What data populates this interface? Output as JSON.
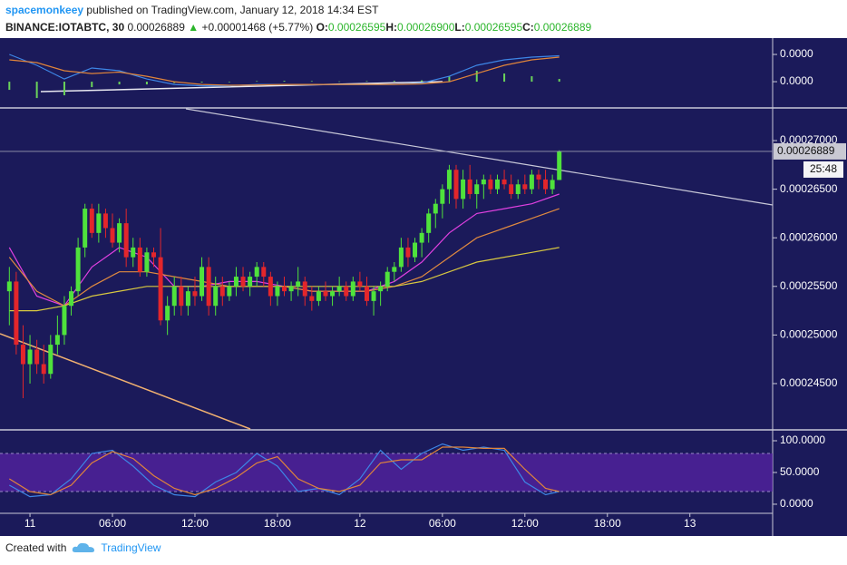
{
  "header": {
    "author": "spacemonkeey",
    "published": "published on TradingView.com, January 12, 2018 14:34 EST",
    "symbol": "BINANCE:IOTABTC, 30",
    "last": "0.00026889",
    "change": "+0.00001468 (+5.77%)",
    "ohlc": [
      {
        "label": "O:",
        "value": "0.00026595"
      },
      {
        "label": "H:",
        "value": "0.00026900"
      },
      {
        "label": "L:",
        "value": "0.00026595"
      },
      {
        "label": "C:",
        "value": "0.00026889"
      }
    ]
  },
  "chart_data": [
    {
      "type": "combo",
      "ylim": [
        -9.3e-07,
        1.6e-06
      ],
      "yticks": [
        {
          "value": 1e-06,
          "label": "0.0000"
        },
        {
          "value": 0,
          "label": "0.0000"
        }
      ],
      "series": [
        {
          "type": "bar",
          "color": "#6bd45a",
          "x": [
            0,
            4,
            8,
            12,
            16,
            20,
            24,
            28,
            32,
            36,
            40,
            44,
            48,
            52,
            56,
            60,
            64,
            68,
            72,
            76,
            80
          ],
          "values": [
            -3e-07,
            -6e-07,
            -5e-07,
            -2e-07,
            -1e-07,
            -1e-07,
            -5e-08,
            -3e-08,
            -2e-08,
            2e-08,
            3e-08,
            2e-08,
            1e-08,
            2e-08,
            3e-08,
            5e-08,
            2e-07,
            4e-07,
            3e-07,
            2e-07,
            1e-07
          ]
        },
        {
          "type": "line",
          "color": "#3d86e6",
          "x": [
            0,
            4,
            8,
            12,
            16,
            20,
            24,
            28,
            32,
            36,
            40,
            44,
            48,
            52,
            56,
            60,
            64,
            68,
            72,
            76,
            80
          ],
          "values": [
            1e-06,
            6e-07,
            1e-07,
            5e-07,
            4e-07,
            1e-07,
            -1e-07,
            -1.5e-07,
            -1.5e-07,
            -1e-07,
            -1e-07,
            -1e-07,
            -1e-07,
            -1e-07,
            -1e-07,
            -5e-08,
            2e-07,
            6e-07,
            8e-07,
            9e-07,
            9.5e-07
          ]
        },
        {
          "type": "line",
          "color": "#e0843a",
          "x": [
            0,
            4,
            8,
            12,
            16,
            20,
            24,
            28,
            32,
            36,
            40,
            44,
            48,
            52,
            56,
            60,
            64,
            68,
            72,
            76,
            80
          ],
          "values": [
            8e-07,
            7e-07,
            4e-07,
            3e-07,
            3.5e-07,
            2e-07,
            0,
            -1e-07,
            -1.3e-07,
            -1.2e-07,
            -1e-07,
            -1e-07,
            -1e-07,
            -1e-07,
            -1e-07,
            -8e-08,
            0,
            3e-07,
            6e-07,
            8e-07,
            9e-07
          ]
        }
      ]
    },
    {
      "type": "candlestick",
      "xlim": [
        -1.36,
        111.04
      ],
      "xticks": [
        {
          "value": 3,
          "label": "11"
        },
        {
          "value": 15,
          "label": "06:00"
        },
        {
          "value": 27,
          "label": "12:00"
        },
        {
          "value": 39,
          "label": "18:00"
        },
        {
          "value": 51,
          "label": "12"
        },
        {
          "value": 63,
          "label": "06:00"
        },
        {
          "value": 75,
          "label": "12:00"
        },
        {
          "value": 87,
          "label": "18:00"
        },
        {
          "value": 99,
          "label": "13"
        }
      ],
      "ylim": [
        0.00024033,
        0.00027327
      ],
      "yticks": [
        {
          "value": 0.00027,
          "label": "0.00027000"
        },
        {
          "value": 0.000265,
          "label": "0.00026500"
        },
        {
          "value": 0.00026,
          "label": "0.00026000"
        },
        {
          "value": 0.000255,
          "label": "0.00025500"
        },
        {
          "value": 0.00025,
          "label": "0.00025000"
        },
        {
          "value": 0.000245,
          "label": "0.00024500"
        }
      ],
      "up_color": "#4fe23c",
      "down_color": "#e3262b",
      "open": [
        0.0002545,
        0.0002555,
        0.000249,
        0.000247,
        0.0002485,
        0.000247,
        0.000246,
        0.000249,
        0.00025,
        0.000253,
        0.0002545,
        0.000259,
        0.000263,
        0.0002605,
        0.0002625,
        0.000261,
        0.0002595,
        0.0002615,
        0.000258,
        0.000259,
        0.0002565,
        0.0002585,
        0.000258,
        0.0002515,
        0.000253,
        0.000255,
        0.000253,
        0.0002545,
        0.000254,
        0.000257,
        0.000253,
        0.000255,
        0.000254,
        0.000255,
        0.000256,
        0.000255,
        0.000256,
        0.000257,
        0.000256,
        0.000254,
        0.000255,
        0.0002545,
        0.000255,
        0.0002555,
        0.000254,
        0.0002535,
        0.0002545,
        0.000254,
        0.0002545,
        0.000255,
        0.000254,
        0.0002555,
        0.000255,
        0.0002535,
        0.0002545,
        0.000255,
        0.0002565,
        0.000257,
        0.000259,
        0.000258,
        0.0002595,
        0.0002605,
        0.0002625,
        0.0002635,
        0.000265,
        0.000267,
        0.000264,
        0.000266,
        0.0002645,
        0.0002655,
        0.000266,
        0.000265,
        0.000266,
        0.0002655,
        0.0002645,
        0.0002655,
        0.000265,
        0.0002665,
        0.000266,
        0.000265,
        0.00026595
      ],
      "high": [
        0.000257,
        0.0002565,
        0.000251,
        0.00025,
        0.0002495,
        0.000249,
        0.00025,
        0.000252,
        0.000254,
        0.000255,
        0.00026,
        0.0002635,
        0.0002635,
        0.0002635,
        0.000263,
        0.0002625,
        0.000262,
        0.000263,
        0.00026,
        0.00026,
        0.000259,
        0.000259,
        0.000261,
        0.000254,
        0.000256,
        0.000256,
        0.000255,
        0.000256,
        0.000258,
        0.000258,
        0.000256,
        0.000256,
        0.0002555,
        0.000257,
        0.000257,
        0.0002565,
        0.0002575,
        0.0002575,
        0.0002565,
        0.0002555,
        0.000256,
        0.0002555,
        0.000257,
        0.000256,
        0.000255,
        0.000255,
        0.0002555,
        0.000255,
        0.000256,
        0.0002555,
        0.000256,
        0.0002565,
        0.000256,
        0.000255,
        0.0002555,
        0.000257,
        0.0002575,
        0.00026,
        0.00026,
        0.00026,
        0.000261,
        0.000263,
        0.000264,
        0.0002655,
        0.0002675,
        0.0002675,
        0.000267,
        0.0002675,
        0.000266,
        0.0002665,
        0.0002665,
        0.0002665,
        0.000267,
        0.0002665,
        0.000266,
        0.0002665,
        0.000267,
        0.000267,
        0.000267,
        0.0002665,
        0.000269
      ],
      "low": [
        0.000251,
        0.000248,
        0.0002435,
        0.000245,
        0.000246,
        0.000245,
        0.0002455,
        0.000248,
        0.000249,
        0.000252,
        0.000254,
        0.000258,
        0.00026,
        0.0002595,
        0.00026,
        0.000259,
        0.0002585,
        0.000257,
        0.000257,
        0.000256,
        0.000256,
        0.000257,
        0.000251,
        0.00025,
        0.000252,
        0.000252,
        0.000252,
        0.000253,
        0.0002535,
        0.000252,
        0.000252,
        0.000253,
        0.0002535,
        0.000254,
        0.0002545,
        0.000254,
        0.000255,
        0.000255,
        0.000253,
        0.000253,
        0.000254,
        0.0002535,
        0.000254,
        0.000253,
        0.0002525,
        0.000253,
        0.0002535,
        0.000253,
        0.000254,
        0.0002535,
        0.0002535,
        0.0002545,
        0.000253,
        0.000252,
        0.000253,
        0.0002545,
        0.0002555,
        0.0002565,
        0.000257,
        0.0002575,
        0.000258,
        0.0002595,
        0.000261,
        0.000262,
        0.0002635,
        0.000263,
        0.000263,
        0.000264,
        0.000263,
        0.000264,
        0.0002645,
        0.0002645,
        0.000265,
        0.000264,
        0.000264,
        0.0002645,
        0.0002645,
        0.000265,
        0.0002645,
        0.0002645,
        0.00026595
      ],
      "close": [
        0.0002555,
        0.000249,
        0.000247,
        0.0002485,
        0.000247,
        0.000246,
        0.000249,
        0.00025,
        0.000253,
        0.0002545,
        0.000259,
        0.000263,
        0.0002605,
        0.0002625,
        0.000261,
        0.0002595,
        0.0002615,
        0.000258,
        0.000259,
        0.0002565,
        0.0002585,
        0.000258,
        0.0002515,
        0.000253,
        0.000255,
        0.000253,
        0.0002545,
        0.000254,
        0.000257,
        0.000253,
        0.000255,
        0.000254,
        0.000255,
        0.000256,
        0.000255,
        0.000256,
        0.000257,
        0.000256,
        0.000254,
        0.000255,
        0.0002545,
        0.000255,
        0.0002555,
        0.000254,
        0.0002535,
        0.0002545,
        0.000254,
        0.0002545,
        0.000255,
        0.000254,
        0.0002555,
        0.000255,
        0.0002535,
        0.0002545,
        0.000255,
        0.0002565,
        0.000257,
        0.000259,
        0.000258,
        0.0002595,
        0.0002605,
        0.0002625,
        0.0002635,
        0.000265,
        0.000267,
        0.000264,
        0.000266,
        0.0002645,
        0.0002655,
        0.000266,
        0.000265,
        0.000266,
        0.0002655,
        0.0002645,
        0.0002655,
        0.000265,
        0.0002665,
        0.000266,
        0.000265,
        0.00026595,
        0.00026889
      ],
      "lines": [
        {
          "color": "#e040e0",
          "x": [
            0,
            4,
            8,
            12,
            16,
            20,
            24,
            28,
            32,
            36,
            40,
            44,
            48,
            52,
            56,
            60,
            64,
            68,
            72,
            76,
            80
          ],
          "values": [
            0.000259,
            0.000254,
            0.000253,
            0.000257,
            0.000259,
            0.000258,
            0.000255,
            0.000255,
            0.0002555,
            0.0002555,
            0.000255,
            0.0002545,
            0.0002545,
            0.0002545,
            0.0002555,
            0.0002575,
            0.0002605,
            0.0002625,
            0.000263,
            0.0002635,
            0.0002645
          ]
        },
        {
          "color": "#e08a40",
          "x": [
            0,
            4,
            8,
            12,
            16,
            20,
            24,
            28,
            32,
            36,
            40,
            44,
            48,
            52,
            56,
            60,
            64,
            68,
            72,
            76,
            80
          ],
          "values": [
            0.000258,
            0.0002545,
            0.000253,
            0.000255,
            0.0002565,
            0.0002565,
            0.000256,
            0.0002555,
            0.000255,
            0.000255,
            0.000255,
            0.0002545,
            0.0002545,
            0.0002545,
            0.000255,
            0.000256,
            0.000258,
            0.00026,
            0.000261,
            0.000262,
            0.000263
          ]
        },
        {
          "color": "#d8c840",
          "x": [
            0,
            4,
            8,
            12,
            16,
            20,
            24,
            28,
            32,
            36,
            40,
            44,
            48,
            52,
            56,
            60,
            64,
            68,
            72,
            76,
            80
          ],
          "values": [
            0.0002525,
            0.0002525,
            0.000253,
            0.000254,
            0.0002545,
            0.000255,
            0.000255,
            0.000255,
            0.000255,
            0.000255,
            0.000255,
            0.000255,
            0.000255,
            0.000255,
            0.000255,
            0.0002555,
            0.0002565,
            0.0002575,
            0.000258,
            0.0002585,
            0.000259
          ]
        }
      ]
    },
    {
      "type": "line",
      "ylim": [
        -12.9,
        115.7
      ],
      "yticks": [
        {
          "value": 100,
          "label": "100.0000"
        },
        {
          "value": 50,
          "label": "50.0000"
        },
        {
          "value": 0,
          "label": "0.0000"
        }
      ],
      "band": [
        20,
        80
      ],
      "band_color": "#5a23a8",
      "series": [
        {
          "color": "#3d86e6",
          "x": [
            0,
            3,
            6,
            9,
            12,
            15,
            18,
            21,
            24,
            27,
            30,
            33,
            36,
            39,
            42,
            45,
            48,
            51,
            54,
            57,
            60,
            63,
            66,
            69,
            72,
            75,
            78,
            80
          ],
          "values": [
            30,
            12,
            15,
            40,
            80,
            85,
            60,
            30,
            15,
            12,
            35,
            50,
            80,
            60,
            20,
            25,
            15,
            40,
            85,
            55,
            80,
            95,
            85,
            90,
            85,
            35,
            15,
            20
          ]
        },
        {
          "color": "#e0843a",
          "x": [
            0,
            3,
            6,
            9,
            12,
            15,
            18,
            21,
            24,
            27,
            30,
            33,
            36,
            39,
            42,
            45,
            48,
            51,
            54,
            57,
            60,
            63,
            66,
            69,
            72,
            75,
            78,
            80
          ],
          "values": [
            40,
            20,
            15,
            30,
            65,
            83,
            72,
            45,
            25,
            15,
            25,
            42,
            65,
            75,
            40,
            25,
            20,
            30,
            65,
            70,
            70,
            90,
            90,
            88,
            88,
            55,
            25,
            20
          ]
        }
      ]
    }
  ],
  "price_label": "0.00026889",
  "countdown": "25:48",
  "footer": {
    "created": "Created with",
    "brand": "TradingView"
  }
}
